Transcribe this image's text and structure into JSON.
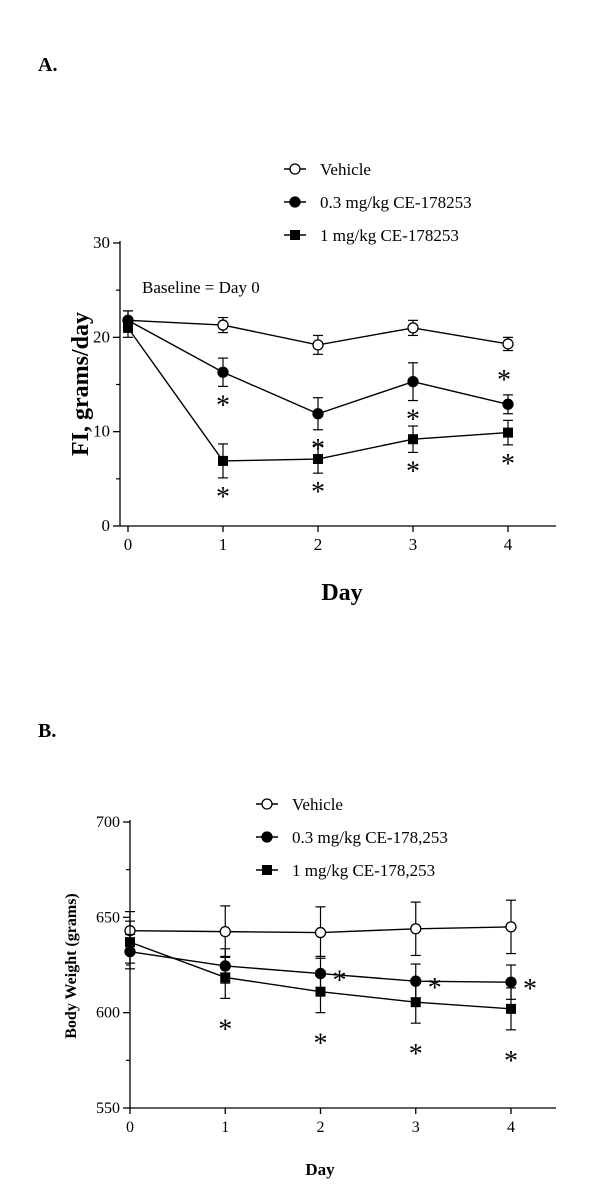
{
  "chart_data": [
    {
      "type": "line",
      "panel_label": "A.",
      "xlabel": "Day",
      "ylabel": "FI, grams/day",
      "annotation": "Baseline = Day 0",
      "x": [
        0,
        1,
        2,
        3,
        4
      ],
      "xlim": [
        0,
        4
      ],
      "ylim": [
        0,
        30
      ],
      "yticks": [
        0,
        10,
        20,
        30
      ],
      "xticks": [
        0,
        1,
        2,
        3,
        4
      ],
      "legend_position": "top-right",
      "series": [
        {
          "name": "Vehicle",
          "marker": "open-circle",
          "values": [
            21.8,
            21.3,
            19.2,
            21.0,
            19.3
          ],
          "errors": [
            1.0,
            0.8,
            1.0,
            0.8,
            0.7
          ],
          "sig": [
            false,
            false,
            false,
            false,
            false
          ]
        },
        {
          "name": "0.3 mg/kg CE-178253",
          "marker": "filled-circle",
          "values": [
            21.8,
            16.3,
            11.9,
            15.3,
            12.9
          ],
          "errors": [
            1.0,
            1.5,
            1.7,
            2.0,
            1.0
          ],
          "sig": [
            false,
            true,
            true,
            true,
            true
          ]
        },
        {
          "name": "1 mg/kg CE-178253",
          "marker": "filled-square",
          "values": [
            21.0,
            6.9,
            7.1,
            9.2,
            9.9
          ],
          "errors": [
            1.0,
            1.8,
            1.5,
            1.4,
            1.3
          ],
          "sig": [
            false,
            true,
            true,
            true,
            true
          ]
        }
      ],
      "sig_marker": "*"
    },
    {
      "type": "line",
      "panel_label": "B.",
      "xlabel": "Day",
      "ylabel": "Body Weight (grams)",
      "x": [
        0,
        1,
        2,
        3,
        4
      ],
      "xlim": [
        0,
        4
      ],
      "ylim": [
        550,
        700
      ],
      "yticks": [
        550,
        600,
        650,
        700
      ],
      "xticks": [
        0,
        1,
        2,
        3,
        4
      ],
      "legend_position": "top",
      "series": [
        {
          "name": "Vehicle",
          "marker": "open-circle",
          "values": [
            643,
            642.5,
            642,
            644,
            645
          ],
          "errors": [
            10,
            13.5,
            13.5,
            14,
            14
          ],
          "sig": [
            false,
            false,
            false,
            false,
            false
          ]
        },
        {
          "name": "0.3 mg/kg CE-178,253",
          "marker": "filled-circle",
          "values": [
            632,
            624.5,
            620.5,
            616.5,
            616
          ],
          "errors": [
            9,
            9,
            9,
            9,
            9
          ],
          "sig": [
            false,
            false,
            true,
            true,
            true
          ]
        },
        {
          "name": "1 mg/kg CE-178,253",
          "marker": "filled-square",
          "values": [
            637,
            618.5,
            611,
            605.5,
            602
          ],
          "errors": [
            11,
            11,
            11,
            11,
            11
          ],
          "sig": [
            false,
            true,
            true,
            true,
            true
          ]
        }
      ],
      "sig_marker": "*"
    }
  ]
}
